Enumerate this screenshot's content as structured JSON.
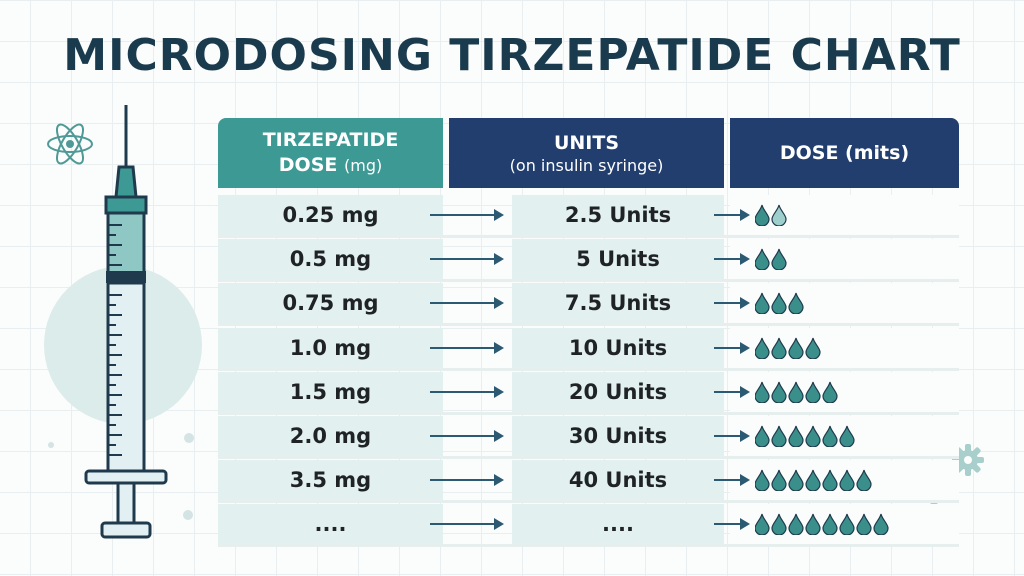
{
  "title": "MICRODOSING TIRZEPATIDE CHART",
  "headers": {
    "col1_line1": "TIRZEPATIDE",
    "col1_line2": "DOSE",
    "col1_unit": "(mg)",
    "col2_main": "UNITS",
    "col2_sub": "(on insulin syringe)",
    "col3": "DOSE (mits)"
  },
  "rows": [
    {
      "dose": "0.25 mg",
      "units": "2.5 Units",
      "drops": 2
    },
    {
      "dose": "0.5 mg",
      "units": "5 Units",
      "drops": 2
    },
    {
      "dose": "0.75 mg",
      "units": "7.5 Units",
      "drops": 3
    },
    {
      "dose": "1.0 mg",
      "units": "10 Units",
      "drops": 4
    },
    {
      "dose": "1.5 mg",
      "units": "20 Units",
      "drops": 5
    },
    {
      "dose": "2.0 mg",
      "units": "30 Units",
      "drops": 6
    },
    {
      "dose": "3.5 mg",
      "units": "40 Units",
      "drops": 7
    },
    {
      "dose": "....",
      "units": "....",
      "drops": 8
    }
  ],
  "colors": {
    "accent_teal": "#3c9994",
    "header_navy": "#213e6e",
    "title": "#1a3b4d",
    "drop": "#3a8f8b",
    "cell_bg": "#e2f0f0"
  },
  "icons": [
    "syringe-icon",
    "atom-icon",
    "gears-icon",
    "water-drop-icon",
    "arrow-right-icon"
  ]
}
